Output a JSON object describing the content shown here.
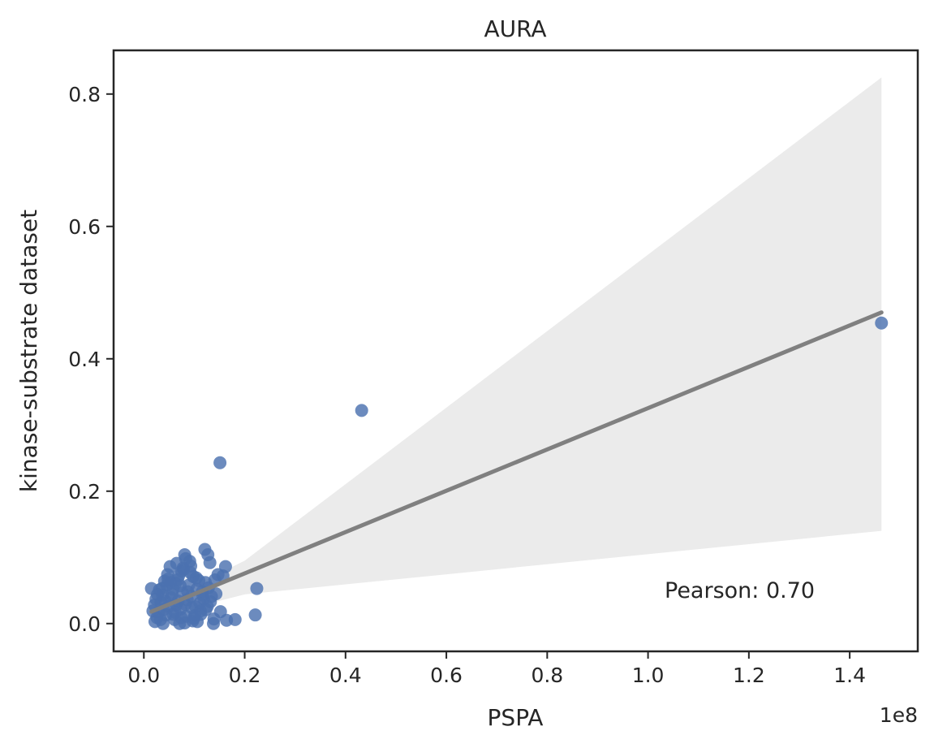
{
  "chart_data": {
    "type": "scatter",
    "title": "AURA",
    "xlabel": "PSPA",
    "ylabel": "kinase-substrate dataset",
    "x_offset_label": "1e8",
    "annotation": "Pearson: 0.70",
    "xlim": [
      -0.06,
      1.535
    ],
    "ylim": [
      -0.042,
      0.866
    ],
    "x_ticks": [
      0.0,
      0.2,
      0.4,
      0.6,
      0.8,
      1.0,
      1.2,
      1.4
    ],
    "x_tick_labels": [
      "0.0",
      "0.2",
      "0.4",
      "0.6",
      "0.8",
      "1.0",
      "1.2",
      "1.4"
    ],
    "y_ticks": [
      0.0,
      0.2,
      0.4,
      0.6,
      0.8
    ],
    "y_tick_labels": [
      "0.0",
      "0.2",
      "0.4",
      "0.6",
      "0.8"
    ],
    "grid": false,
    "colors": {
      "points": "#4c72b0",
      "regression_line": "#808080",
      "confidence_band": "#ebebeb",
      "axes": "#262626"
    },
    "regression": {
      "x": [
        0.015,
        1.463
      ],
      "y": [
        0.018,
        0.47
      ]
    },
    "confidence_band": {
      "x": [
        0.015,
        0.2,
        1.463
      ],
      "upper": [
        0.025,
        0.095,
        0.825
      ],
      "lower": [
        0.008,
        0.044,
        0.14
      ]
    },
    "points": {
      "x": [
        1.463,
        0.432,
        0.151,
        0.224,
        0.221,
        0.181,
        0.164,
        0.138,
        0.162,
        0.121,
        0.127,
        0.131,
        0.081,
        0.083,
        0.091,
        0.093,
        0.079,
        0.075,
        0.069,
        0.052,
        0.047,
        0.041,
        0.036,
        0.031,
        0.027,
        0.024,
        0.021,
        0.018,
        0.015,
        0.029,
        0.033,
        0.038,
        0.044,
        0.049,
        0.054,
        0.058,
        0.063,
        0.067,
        0.072,
        0.077,
        0.086,
        0.095,
        0.101,
        0.106,
        0.111,
        0.116,
        0.122,
        0.128,
        0.134,
        0.141,
        0.147,
        0.152,
        0.061,
        0.071,
        0.064,
        0.056,
        0.089,
        0.098,
        0.109,
        0.119,
        0.042,
        0.039,
        0.026,
        0.022,
        0.058,
        0.073,
        0.084,
        0.097,
        0.112,
        0.126,
        0.139,
        0.065,
        0.078,
        0.092,
        0.104,
        0.068,
        0.082,
        0.087,
        0.094,
        0.105,
        0.117,
        0.132,
        0.046,
        0.053,
        0.037,
        0.034,
        0.081,
        0.099,
        0.074,
        0.062,
        0.103,
        0.113,
        0.123,
        0.143,
        0.157,
        0.048
      ],
      "y": [
        0.454,
        0.322,
        0.243,
        0.053,
        0.013,
        0.006,
        0.005,
        0.0,
        0.086,
        0.112,
        0.104,
        0.092,
        0.104,
        0.098,
        0.094,
        0.087,
        0.082,
        0.079,
        0.072,
        0.086,
        0.074,
        0.064,
        0.053,
        0.051,
        0.044,
        0.037,
        0.028,
        0.019,
        0.053,
        0.017,
        0.006,
        0.0,
        0.013,
        0.026,
        0.039,
        0.052,
        0.061,
        0.066,
        0.057,
        0.046,
        0.036,
        0.024,
        0.012,
        0.003,
        0.031,
        0.048,
        0.062,
        0.054,
        0.041,
        0.066,
        0.074,
        0.018,
        0.006,
        0.0,
        0.028,
        0.044,
        0.058,
        0.071,
        0.065,
        0.037,
        0.034,
        0.021,
        0.009,
        0.003,
        0.014,
        0.022,
        0.011,
        0.004,
        0.019,
        0.026,
        0.007,
        0.091,
        0.084,
        0.077,
        0.069,
        0.034,
        0.029,
        0.048,
        0.041,
        0.052,
        0.043,
        0.033,
        0.058,
        0.062,
        0.043,
        0.032,
        0.001,
        0.008,
        0.009,
        0.017,
        0.025,
        0.014,
        0.021,
        0.045,
        0.072,
        0.067
      ]
    }
  }
}
